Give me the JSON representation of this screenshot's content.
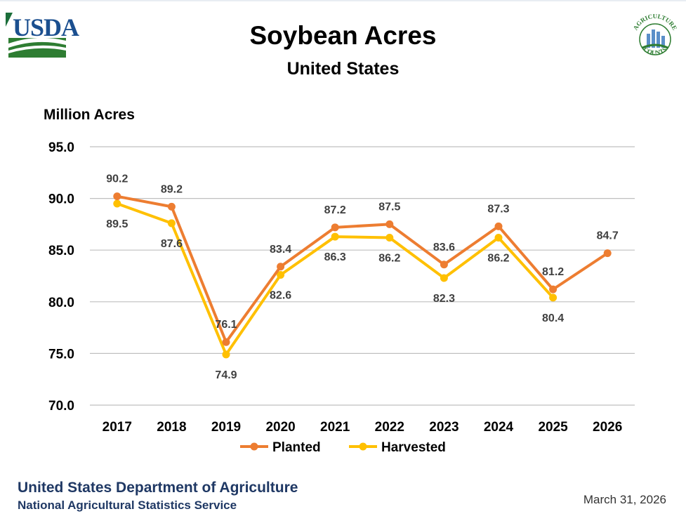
{
  "header": {
    "logo_text": "USDA",
    "title": "Soybean Acres",
    "subtitle": "United States",
    "ag_logo_text": "AGRICULTURE COUNTS"
  },
  "footer": {
    "department": "United States Department of Agriculture",
    "agency": "National Agricultural Statistics Service",
    "date": "March 31, 2026"
  },
  "colors": {
    "planted": "#ed7d31",
    "harvested": "#ffc000",
    "grid": "#bfbfbf",
    "usda_blue": "#1b4f8f",
    "usda_green": "#2e7d32"
  },
  "chart_data": {
    "type": "line",
    "title": "Soybean Acres",
    "subtitle": "United States",
    "ylabel": "Million Acres",
    "xlabel": "",
    "categories": [
      "2017",
      "2018",
      "2019",
      "2020",
      "2021",
      "2022",
      "2023",
      "2024",
      "2025",
      "2026"
    ],
    "ylim": [
      70,
      95
    ],
    "yticks": [
      "70.0",
      "75.0",
      "80.0",
      "85.0",
      "90.0",
      "95.0"
    ],
    "grid": true,
    "legend_position": "bottom",
    "series": [
      {
        "name": "Planted",
        "values": [
          90.2,
          89.2,
          76.1,
          83.4,
          87.2,
          87.5,
          83.6,
          87.3,
          81.2,
          84.7
        ]
      },
      {
        "name": "Harvested",
        "values": [
          89.5,
          87.6,
          74.9,
          82.6,
          86.3,
          86.2,
          82.3,
          86.2,
          80.4,
          null
        ]
      }
    ]
  }
}
